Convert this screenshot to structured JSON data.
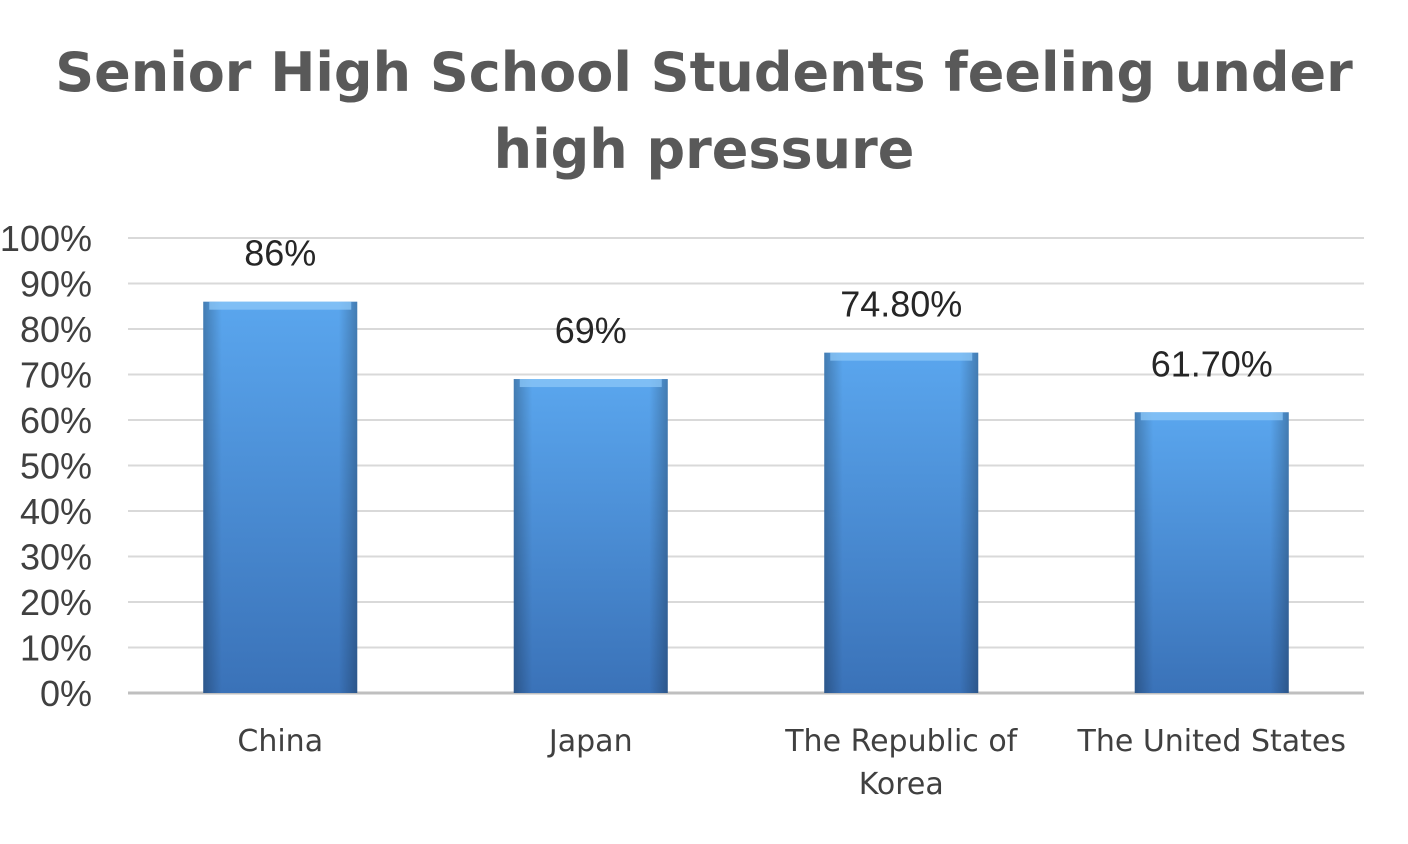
{
  "chart_data": {
    "type": "bar",
    "title_lines": [
      "Senior High School Students feeling under",
      "high pressure"
    ],
    "categories": [
      "China",
      "Japan",
      "The Republic of Korea",
      "The United States"
    ],
    "category_label_lines": [
      [
        "China"
      ],
      [
        "Japan"
      ],
      [
        "The Republic of",
        "Korea"
      ],
      [
        "The United States"
      ]
    ],
    "values": [
      86,
      69,
      74.8,
      61.7
    ],
    "data_labels": [
      "86%",
      "69%",
      "74.80%",
      "61.70%"
    ],
    "ylim": [
      0,
      100
    ],
    "y_ticks": [
      0,
      10,
      20,
      30,
      40,
      50,
      60,
      70,
      80,
      90,
      100
    ],
    "y_tick_labels": [
      "0%",
      "10%",
      "20%",
      "30%",
      "40%",
      "50%",
      "60%",
      "70%",
      "80%",
      "90%",
      "100%"
    ],
    "xlabel": "",
    "ylabel": "",
    "grid": true,
    "legend": "none",
    "bar_color": "#4A8FDB",
    "bar_color_light": "#5AA6EE",
    "bar_color_dark": "#3A72B8",
    "grid_color": "#D9D9D9",
    "axis_color": "#BFBFBF"
  }
}
